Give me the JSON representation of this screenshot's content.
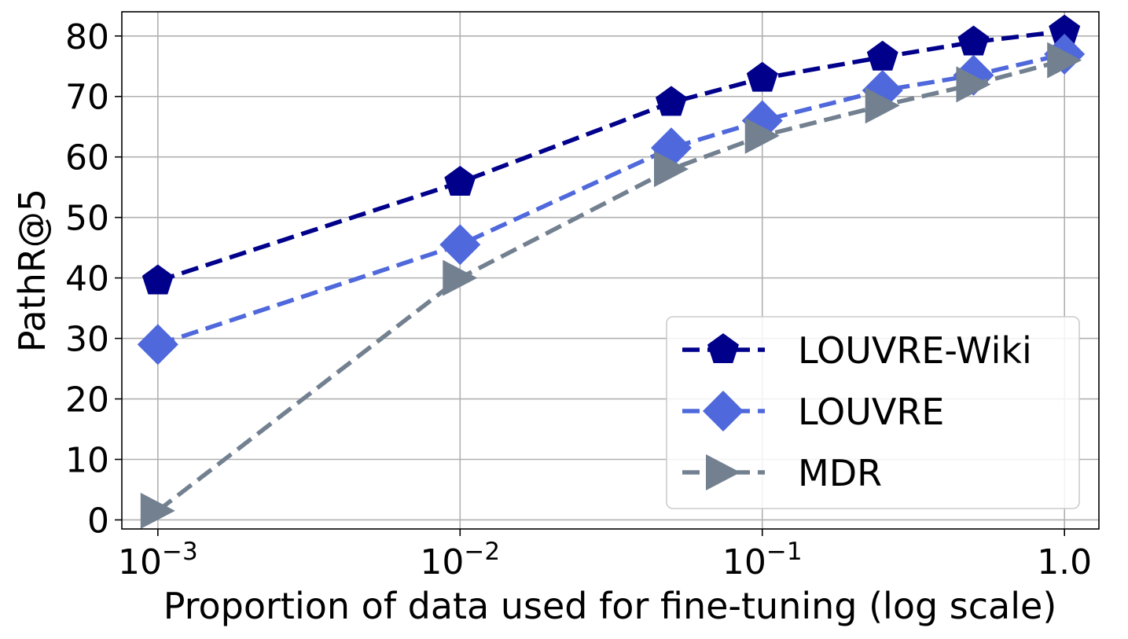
{
  "chart_data": {
    "type": "line",
    "title": "",
    "xlabel": "Proportion of data used for fine-tuning (log scale)",
    "ylabel": "PathR@5",
    "xscale": "log",
    "x": [
      0.001,
      0.01,
      0.05,
      0.1,
      0.25,
      0.5,
      1.0
    ],
    "xlim": [
      0.00076,
      1.3
    ],
    "ylim": [
      -1.5,
      84
    ],
    "yticks": [
      0,
      10,
      20,
      30,
      40,
      50,
      60,
      70,
      80
    ],
    "xticks": [
      {
        "value": 0.001,
        "base": "10",
        "exp": "−3",
        "plain": ""
      },
      {
        "value": 0.01,
        "base": "10",
        "exp": "−2",
        "plain": ""
      },
      {
        "value": 0.1,
        "base": "10",
        "exp": "−1",
        "plain": ""
      },
      {
        "value": 1.0,
        "base": "",
        "exp": "",
        "plain": "1.0"
      }
    ],
    "grid": true,
    "legend_position": "bottom-right",
    "series": [
      {
        "name": "LOUVRE-Wiki",
        "marker": "pentagon",
        "color": "#00008b",
        "values": [
          39.5,
          55.8,
          69.0,
          73.0,
          76.5,
          79.0,
          80.8
        ]
      },
      {
        "name": "LOUVRE",
        "marker": "diamond",
        "color": "#4f68dc",
        "values": [
          29.0,
          45.5,
          61.5,
          66.0,
          71.0,
          73.5,
          77.0
        ]
      },
      {
        "name": "MDR",
        "marker": "triangle-right",
        "color": "#728090",
        "values": [
          1.5,
          40.0,
          58.0,
          63.5,
          68.5,
          72.0,
          76.0
        ]
      }
    ]
  }
}
